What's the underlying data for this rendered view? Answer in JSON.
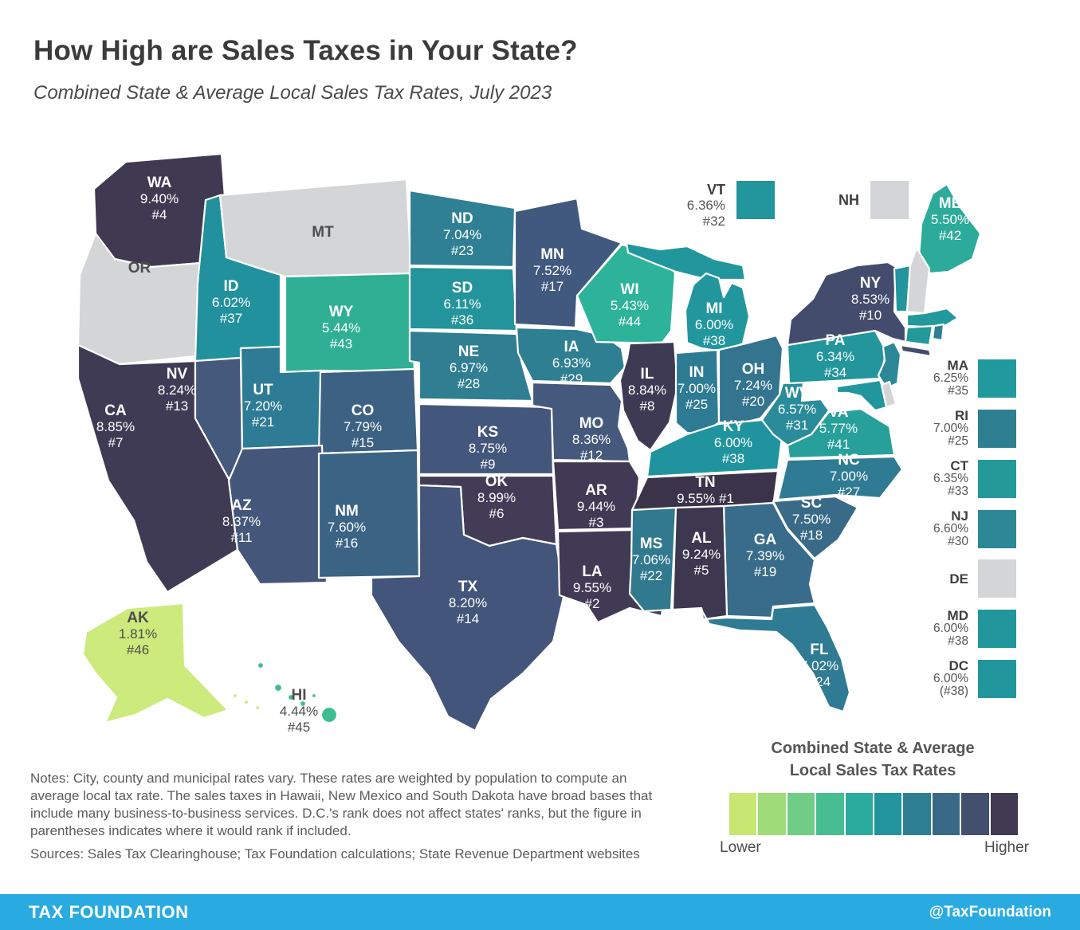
{
  "header": {
    "title": "How High are Sales Taxes in Your State?",
    "subtitle": "Combined State & Average Local Sales Tax Rates, July 2023"
  },
  "chart_data": {
    "type": "heatmap",
    "subtype": "us_choropleth",
    "title": "Combined State & Average Local Sales Tax Rates, July 2023",
    "unit": "percent",
    "states": {
      "WA": {
        "rate": "9.40%",
        "rank": "#4",
        "color": "#3f3a52"
      },
      "OR": {
        "rate": "",
        "rank": "",
        "color": "#d3d5d7",
        "dark_label": true,
        "single_line": true
      },
      "CA": {
        "rate": "8.85%",
        "rank": "#7",
        "color": "#403b55"
      },
      "ID": {
        "rate": "6.02%",
        "rank": "#37",
        "color": "#22919e"
      },
      "NV": {
        "rate": "8.24%",
        "rank": "#13",
        "color": "#45597d"
      },
      "MT": {
        "rate": "",
        "rank": "",
        "color": "#d3d5d7",
        "dark_label": true,
        "single_line": true
      },
      "WY": {
        "rate": "5.44%",
        "rank": "#43",
        "color": "#2fb095"
      },
      "UT": {
        "rate": "7.20%",
        "rank": "#21",
        "color": "#2d7b94"
      },
      "CO": {
        "rate": "7.79%",
        "rank": "#15",
        "color": "#3c6182"
      },
      "AZ": {
        "rate": "8.37%",
        "rank": "#11",
        "color": "#44577b"
      },
      "NM": {
        "rate": "7.60%",
        "rank": "#16",
        "color": "#3a6384"
      },
      "ND": {
        "rate": "7.04%",
        "rank": "#23",
        "color": "#2f8094"
      },
      "SD": {
        "rate": "6.11%",
        "rank": "#36",
        "color": "#23949b"
      },
      "NE": {
        "rate": "6.97%",
        "rank": "#28",
        "color": "#307e92"
      },
      "KS": {
        "rate": "8.75%",
        "rank": "#9",
        "color": "#43567b"
      },
      "OK": {
        "rate": "8.99%",
        "rank": "#6",
        "color": "#423c57"
      },
      "TX": {
        "rate": "8.20%",
        "rank": "#14",
        "color": "#43557a"
      },
      "MN": {
        "rate": "7.52%",
        "rank": "#17",
        "color": "#41597e"
      },
      "IA": {
        "rate": "6.93%",
        "rank": "#29",
        "color": "#2f7f93"
      },
      "MO": {
        "rate": "8.36%",
        "rank": "#12",
        "color": "#45597d"
      },
      "AR": {
        "rate": "9.44%",
        "rank": "#3",
        "color": "#403a55"
      },
      "LA": {
        "rate": "9.55%",
        "rank": "#2",
        "color": "#403a55"
      },
      "WI": {
        "rate": "5.43%",
        "rank": "#44",
        "color": "#2db39a"
      },
      "MI": {
        "rate": "6.00%",
        "rank": "#38",
        "color": "#21969d"
      },
      "IL": {
        "rate": "8.84%",
        "rank": "#8",
        "color": "#3e3a54"
      },
      "IN": {
        "rate": "7.00%",
        "rank": "#25",
        "color": "#2e7b94"
      },
      "OH": {
        "rate": "7.24%",
        "rank": "#20",
        "color": "#33748e"
      },
      "KY": {
        "rate": "6.00%",
        "rank": "#38",
        "color": "#1f949e"
      },
      "TN": {
        "rate": "9.55%",
        "rank": "#1",
        "color": "#3a3349",
        "inline_rank": true
      },
      "WV": {
        "rate": "6.57%",
        "rank": "#31",
        "color": "#2a8c9b"
      },
      "VA": {
        "rate": "5.77%",
        "rank": "#41",
        "color": "#27a09b"
      },
      "NC": {
        "rate": "7.00%",
        "rank": "#27",
        "color": "#2f7b93"
      },
      "SC": {
        "rate": "7.50%",
        "rank": "#18",
        "color": "#396a88"
      },
      "GA": {
        "rate": "7.39%",
        "rank": "#19",
        "color": "#386c8a"
      },
      "AL": {
        "rate": "9.24%",
        "rank": "#5",
        "color": "#3d3750"
      },
      "MS": {
        "rate": "7.06%",
        "rank": "#22",
        "color": "#31798f"
      },
      "FL": {
        "rate": "7.02%",
        "rank": "#24",
        "color": "#2f7b93"
      },
      "PA": {
        "rate": "6.34%",
        "rank": "#34",
        "color": "#23959d"
      },
      "NY": {
        "rate": "8.53%",
        "rank": "#10",
        "color": "#434c6c"
      },
      "ME": {
        "rate": "5.50%",
        "rank": "#42",
        "color": "#2cab9b"
      },
      "VT": {
        "rate": "6.36%",
        "rank": "#32",
        "color": "#23959d"
      },
      "NH": {
        "rate": "",
        "rank": "",
        "color": "#d3d5d7"
      },
      "MA": {
        "rate": "6.25%",
        "rank": "#35",
        "color": "#22999c"
      },
      "CT": {
        "rate": "6.35%",
        "rank": "#33",
        "color": "#24999a"
      },
      "RI": {
        "rate": "7.00%",
        "rank": "#25",
        "color": "#2f7f93"
      },
      "NJ": {
        "rate": "6.60%",
        "rank": "#30",
        "color": "#2c8797"
      },
      "DE": {
        "rate": "",
        "rank": "",
        "color": "#d3d5d7"
      },
      "MD": {
        "rate": "6.00%",
        "rank": "#38",
        "color": "#21969d"
      },
      "DC": {
        "rate": "6.00%",
        "rank": "(#38)",
        "color": "#21969d"
      },
      "AK": {
        "rate": "1.81%",
        "rank": "#46",
        "color": "#cdea7d",
        "dark_label": true
      },
      "HI": {
        "rate": "4.44%",
        "rank": "#45",
        "color": "#3ebd92",
        "dark_label": true
      }
    }
  },
  "legend_top": [
    "VT",
    "NH"
  ],
  "legend_right": [
    "MA",
    "RI",
    "CT",
    "NJ",
    "DE",
    "MD",
    "DC"
  ],
  "scale_legend": {
    "title_line1": "Combined State & Average",
    "title_line2": "Local Sales Tax Rates",
    "lower": "Lower",
    "higher": "Higher",
    "colors": [
      "#c7e672",
      "#9fdc79",
      "#70cd86",
      "#47bd92",
      "#2bab9d",
      "#21949e",
      "#2e7e93",
      "#3a6887",
      "#42506e",
      "#403a52"
    ]
  },
  "notes": "Notes: City, county and municipal rates vary. These rates are weighted by population to compute an average local tax rate. The sales taxes in Hawaii, New Mexico and South Dakota have broad bases that include many business-to-business services. D.C.'s rank does not affect states' ranks, but the figure in parentheses indicates where it would rank if included.",
  "sources": "Sources: Sales Tax Clearinghouse; Tax Foundation calculations; State Revenue Department websites",
  "footer": {
    "brand": "TAX FOUNDATION",
    "handle": "@TaxFoundation",
    "bg": "#29abe2"
  }
}
